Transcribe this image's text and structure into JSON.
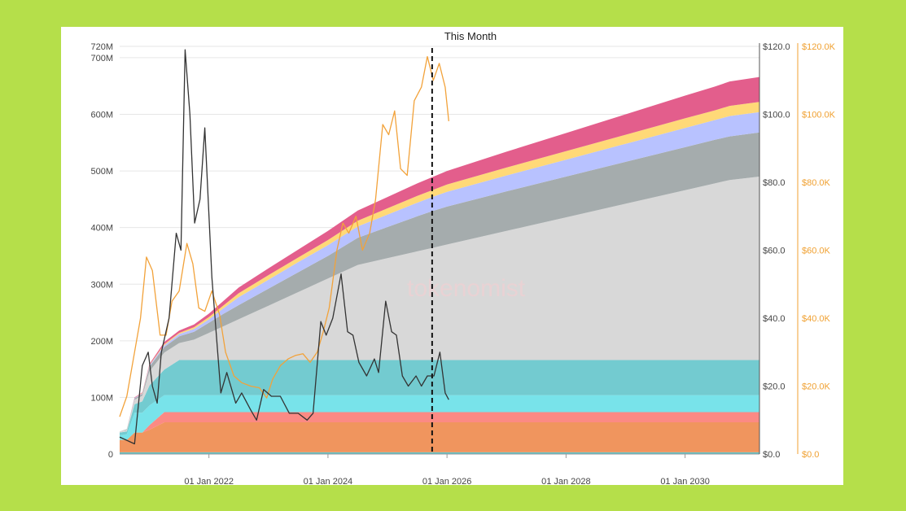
{
  "colors": {
    "background": "#b5df4a",
    "panel": "#ffffff",
    "price_line": "#333333",
    "btc_line": "#f2a23a",
    "this_month_line": "#111111"
  },
  "watermark": {
    "text": "tokenomist"
  },
  "chart_data": {
    "type": "area",
    "title": "This Month",
    "marker_label": "This Month",
    "marker_x": 2025.75,
    "x_range": [
      2020.5,
      2031.25
    ],
    "x_ticks": [
      {
        "label": "01 Jan 2022",
        "x": 2022.0
      },
      {
        "label": "01 Jan 2024",
        "x": 2024.0
      },
      {
        "label": "01 Jan 2026",
        "x": 2026.0
      },
      {
        "label": "01 Jan 2028",
        "x": 2028.0
      },
      {
        "label": "01 Jan 2030",
        "x": 2030.0
      }
    ],
    "y_left": {
      "range": [
        0,
        720
      ],
      "ticks": [
        {
          "label": "720M",
          "v": 720
        },
        {
          "label": "700M",
          "v": 700
        },
        {
          "label": "600M",
          "v": 600
        },
        {
          "label": "500M",
          "v": 500
        },
        {
          "label": "400M",
          "v": 400
        },
        {
          "label": "300M",
          "v": 300
        },
        {
          "label": "200M",
          "v": 200
        },
        {
          "label": "100M",
          "v": 100
        },
        {
          "label": "0",
          "v": 0
        }
      ]
    },
    "y_right_price": {
      "range": [
        0,
        120
      ],
      "ticks": [
        {
          "label": "$120.0",
          "v": 120
        },
        {
          "label": "$100.0",
          "v": 100
        },
        {
          "label": "$80.0",
          "v": 80
        },
        {
          "label": "$60.0",
          "v": 60
        },
        {
          "label": "$40.0",
          "v": 40
        },
        {
          "label": "$20.0",
          "v": 20
        },
        {
          "label": "$0.0",
          "v": 0
        }
      ]
    },
    "y_right_btc": {
      "range": [
        0,
        120000
      ],
      "ticks": [
        {
          "label": "$120.0K",
          "v": 120000
        },
        {
          "label": "$100.0K",
          "v": 100000
        },
        {
          "label": "$80.0K",
          "v": 80000
        },
        {
          "label": "$60.0K",
          "v": 60000
        },
        {
          "label": "$40.0K",
          "v": 40000
        },
        {
          "label": "$20.0K",
          "v": 20000
        },
        {
          "label": "$0.0",
          "v": 0
        }
      ]
    },
    "grid": true,
    "stack_x": [
      2020.5,
      2020.62,
      2020.75,
      2020.88,
      2021.0,
      2021.25,
      2021.5,
      2021.75,
      2022.0,
      2022.25,
      2022.5,
      2023.0,
      2023.5,
      2024.0,
      2024.5,
      2025.0,
      2025.5,
      2025.75,
      2026.0,
      2027.0,
      2028.0,
      2029.0,
      2030.0,
      2030.5,
      2030.75,
      2031.25
    ],
    "series": [
      {
        "color": "#5fc4c8",
        "values": [
          3,
          3,
          3,
          3,
          3,
          3,
          3,
          3,
          3,
          3,
          3,
          3,
          3,
          3,
          3,
          3,
          3,
          3,
          3,
          3,
          3,
          3,
          3,
          3,
          3,
          3
        ]
      },
      {
        "color": "#f0955e",
        "values": [
          22,
          22,
          35,
          35,
          40,
          53,
          53,
          53,
          53,
          53,
          53,
          53,
          53,
          53,
          53,
          53,
          53,
          53,
          53,
          53,
          53,
          53,
          53,
          53,
          53,
          53
        ]
      },
      {
        "color": "#fb8a84",
        "values": [
          0,
          0,
          0,
          0,
          8,
          18,
          18,
          18,
          18,
          18,
          18,
          18,
          18,
          18,
          18,
          18,
          18,
          18,
          18,
          18,
          18,
          18,
          18,
          18,
          18,
          18
        ]
      },
      {
        "color": "#78e3ea",
        "values": [
          8,
          10,
          35,
          35,
          35,
          30,
          30,
          30,
          30,
          30,
          30,
          30,
          30,
          30,
          30,
          30,
          30,
          30,
          30,
          30,
          30,
          30,
          30,
          30,
          30,
          30
        ]
      },
      {
        "color": "#73cbd0",
        "values": [
          5,
          5,
          15,
          20,
          35,
          45,
          62,
          62,
          62,
          62,
          62,
          62,
          62,
          62,
          62,
          62,
          62,
          62,
          62,
          62,
          62,
          62,
          62,
          62,
          62,
          62
        ]
      },
      {
        "color": "#d8d8d8",
        "values": [
          2,
          3,
          8,
          10,
          25,
          30,
          30,
          36,
          48,
          60,
          72,
          96,
          120,
          144,
          168,
          180,
          192,
          198,
          204,
          228,
          252,
          276,
          300,
          312,
          318,
          324
        ]
      },
      {
        "color": "#a5acad",
        "values": [
          0,
          1,
          2,
          3,
          8,
          10,
          12,
          14,
          18,
          22,
          25,
          30,
          35,
          40,
          48,
          55,
          62,
          65,
          67,
          70,
          72,
          74,
          76,
          77,
          77,
          78
        ]
      },
      {
        "color": "#b8c2ff",
        "values": [
          0,
          0,
          1,
          1,
          2,
          3,
          4,
          5,
          6,
          10,
          14,
          16,
          18,
          19,
          20,
          22,
          24,
          25,
          26,
          28,
          30,
          32,
          34,
          35,
          36,
          36
        ]
      },
      {
        "color": "#ffd978",
        "values": [
          0,
          0,
          0,
          1,
          1,
          2,
          2,
          3,
          4,
          5,
          7,
          8,
          8,
          9,
          10,
          11,
          12,
          12,
          13,
          14,
          15,
          16,
          17,
          17,
          18,
          18
        ]
      },
      {
        "color": "#e35e8c",
        "values": [
          0,
          0,
          1,
          1,
          2,
          4,
          4,
          5,
          6,
          8,
          10,
          12,
          14,
          16,
          18,
          20,
          22,
          23,
          24,
          28,
          32,
          36,
          40,
          42,
          43,
          44
        ]
      }
    ],
    "price_line": [
      [
        2020.5,
        5.0
      ],
      [
        2020.75,
        3.0
      ],
      [
        2020.88,
        26.0
      ],
      [
        2020.98,
        30.0
      ],
      [
        2021.05,
        20.0
      ],
      [
        2021.13,
        15.0
      ],
      [
        2021.2,
        30.0
      ],
      [
        2021.33,
        40.0
      ],
      [
        2021.45,
        65.0
      ],
      [
        2021.53,
        60.0
      ],
      [
        2021.6,
        119.0
      ],
      [
        2021.68,
        100.0
      ],
      [
        2021.76,
        68.0
      ],
      [
        2021.85,
        75.0
      ],
      [
        2021.93,
        96.0
      ],
      [
        2022.05,
        52.0
      ],
      [
        2022.2,
        18.0
      ],
      [
        2022.3,
        24.0
      ],
      [
        2022.45,
        15.0
      ],
      [
        2022.55,
        18.0
      ],
      [
        2022.7,
        13.0
      ],
      [
        2022.8,
        10.0
      ],
      [
        2022.92,
        19.0
      ],
      [
        2023.05,
        17.0
      ],
      [
        2023.2,
        17.0
      ],
      [
        2023.35,
        12.0
      ],
      [
        2023.5,
        12.0
      ],
      [
        2023.65,
        10.0
      ],
      [
        2023.75,
        12.0
      ],
      [
        2023.88,
        39.0
      ],
      [
        2023.97,
        35.0
      ],
      [
        2024.08,
        40.0
      ],
      [
        2024.22,
        53.0
      ],
      [
        2024.33,
        36.0
      ],
      [
        2024.42,
        35.0
      ],
      [
        2024.52,
        27.0
      ],
      [
        2024.65,
        23.0
      ],
      [
        2024.78,
        28.0
      ],
      [
        2024.85,
        24.0
      ],
      [
        2024.97,
        45.0
      ],
      [
        2025.07,
        36.0
      ],
      [
        2025.15,
        35.0
      ],
      [
        2025.25,
        23.0
      ],
      [
        2025.35,
        20.0
      ],
      [
        2025.48,
        23.0
      ],
      [
        2025.57,
        20.0
      ],
      [
        2025.67,
        23.0
      ],
      [
        2025.78,
        23.0
      ],
      [
        2025.88,
        30.0
      ],
      [
        2025.97,
        18.0
      ],
      [
        2026.03,
        16.0
      ]
    ],
    "btc_line": [
      [
        2020.5,
        11000
      ],
      [
        2020.62,
        17000
      ],
      [
        2020.75,
        30000
      ],
      [
        2020.85,
        40000
      ],
      [
        2020.95,
        58000
      ],
      [
        2021.05,
        54000
      ],
      [
        2021.18,
        35000
      ],
      [
        2021.28,
        35000
      ],
      [
        2021.38,
        45000
      ],
      [
        2021.5,
        48000
      ],
      [
        2021.63,
        62000
      ],
      [
        2021.73,
        56000
      ],
      [
        2021.83,
        43000
      ],
      [
        2021.93,
        42000
      ],
      [
        2022.05,
        48000
      ],
      [
        2022.18,
        41000
      ],
      [
        2022.28,
        30000
      ],
      [
        2022.42,
        23000
      ],
      [
        2022.55,
        21000
      ],
      [
        2022.7,
        20000
      ],
      [
        2022.85,
        19500
      ],
      [
        2022.97,
        16500
      ],
      [
        2023.07,
        22000
      ],
      [
        2023.2,
        26000
      ],
      [
        2023.33,
        28000
      ],
      [
        2023.45,
        29000
      ],
      [
        2023.58,
        29500
      ],
      [
        2023.7,
        27000
      ],
      [
        2023.82,
        30000
      ],
      [
        2023.92,
        36000
      ],
      [
        2024.02,
        43000
      ],
      [
        2024.15,
        60000
      ],
      [
        2024.25,
        68000
      ],
      [
        2024.35,
        65000
      ],
      [
        2024.47,
        70000
      ],
      [
        2024.58,
        60000
      ],
      [
        2024.7,
        65000
      ],
      [
        2024.8,
        75000
      ],
      [
        2024.92,
        97000
      ],
      [
        2025.02,
        94000
      ],
      [
        2025.12,
        101000
      ],
      [
        2025.22,
        84000
      ],
      [
        2025.33,
        82000
      ],
      [
        2025.45,
        104000
      ],
      [
        2025.57,
        108000
      ],
      [
        2025.67,
        117000
      ],
      [
        2025.77,
        110000
      ],
      [
        2025.87,
        115000
      ],
      [
        2025.97,
        108000
      ],
      [
        2026.03,
        98000
      ]
    ]
  }
}
